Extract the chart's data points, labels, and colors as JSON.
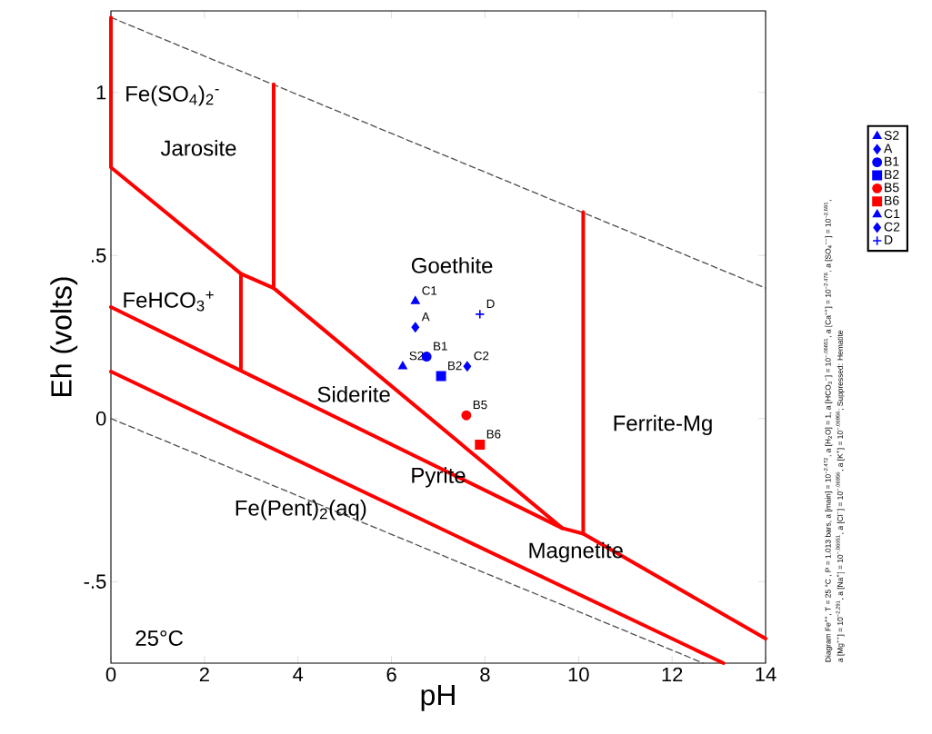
{
  "chart_data": {
    "type": "scatter",
    "xlabel": "pH",
    "ylabel": "Eh (volts)",
    "xlim": [
      0,
      14
    ],
    "ylim": [
      -0.75,
      1.25
    ],
    "xticks": [
      0,
      2,
      4,
      6,
      8,
      10,
      12,
      14
    ],
    "yticks": [
      {
        "value": -0.5,
        "label": "-.5"
      },
      0,
      {
        "value": 0.5,
        "label": ".5"
      },
      1
    ],
    "legend": "right",
    "series": [
      {
        "type": "line",
        "color": "#505050",
        "line_style": "dashed",
        "x": [
          0,
          14
        ],
        "values": [
          1.23,
          0.4
        ]
      },
      {
        "type": "line",
        "color": "#505050",
        "line_style": "dashed",
        "x": [
          0,
          12.67
        ],
        "values": [
          0,
          -0.75
        ]
      },
      {
        "type": "line",
        "color": "#ff0000",
        "x": [
          0,
          0,
          2.78,
          3.48,
          9.65,
          10.1,
          14
        ],
        "values": [
          1.23,
          0.77,
          0.444,
          0.4,
          -0.336,
          -0.353,
          -0.675
        ]
      },
      {
        "type": "line",
        "color": "#ff0000",
        "x": [
          0,
          9.65
        ],
        "values": [
          0.342,
          -0.336
        ]
      },
      {
        "type": "line",
        "color": "#ff0000",
        "x": [
          2.78,
          2.78
        ],
        "values": [
          0.444,
          0.15
        ]
      },
      {
        "type": "line",
        "color": "#ff0000",
        "x": [
          3.48,
          3.48
        ],
        "values": [
          1.025,
          0.4
        ]
      },
      {
        "type": "line",
        "color": "#ff0000",
        "x": [
          10.1,
          10.1
        ],
        "values": [
          0.633,
          -0.353
        ]
      },
      {
        "type": "line",
        "color": "#ff0000",
        "x": [
          0,
          13.1
        ],
        "values": [
          0.144,
          -0.75
        ]
      },
      {
        "name": "S2",
        "color": "#0000ff",
        "marker": "triangle",
        "x": [
          6.24
        ],
        "values": [
          0.16
        ]
      },
      {
        "name": "A",
        "color": "#0000ff",
        "marker": "diamond",
        "x": [
          6.51
        ],
        "values": [
          0.28
        ]
      },
      {
        "name": "B1",
        "color": "#0000ff",
        "marker": "circle",
        "x": [
          6.75
        ],
        "values": [
          0.19
        ]
      },
      {
        "name": "B2",
        "color": "#0000ff",
        "marker": "square",
        "x": [
          7.06
        ],
        "values": [
          0.13
        ]
      },
      {
        "name": "B5",
        "color": "#ff0000",
        "marker": "circle",
        "x": [
          7.6
        ],
        "values": [
          0.01
        ]
      },
      {
        "name": "B6",
        "color": "#ff0000",
        "marker": "square",
        "x": [
          7.89
        ],
        "values": [
          -0.08
        ]
      },
      {
        "name": "C1",
        "color": "#0000ff",
        "marker": "triangle",
        "x": [
          6.51
        ],
        "values": [
          0.36
        ]
      },
      {
        "name": "C2",
        "color": "#0000ff",
        "marker": "diamond",
        "x": [
          7.62
        ],
        "values": [
          0.16
        ]
      },
      {
        "name": "D",
        "color": "#0000ff",
        "marker": "cross",
        "x": [
          7.89
        ],
        "values": [
          0.32
        ]
      }
    ],
    "annotations": [
      "Fe(SO$_{4}$)$_{2}$$^{-}$",
      "Jarosite",
      "FeHCO$_{3}$$^{+}$",
      "Goethite",
      "Siderite",
      "Ferrite-Mg",
      "Magnetite",
      "Pyrite",
      "Fe(Pent)$_{2}$(aq)",
      "25°C",
      "Diagram Fe$^{++}$, T = 25 °C , P = 1.013 bars, a [main] = 10$^{−2.472}$, a [H$_{2}$O] = 1, a [HCO$_{3}$$^{−}$] = 10$^{−.06651}$, a [Ca$^{++}$] = 10$^{−2.476}$, a [SO$_{4}$$^{−−}$] = 10$^{−2.691}$,",
      "a [Mg$^{++}$] = 10$^{−2.291}$, a [Na$^{+}$] = 10$^{−.06651}$, a [Cl$^{−}$] = 10$^{−.06956}$, a [K$^{+}$] = 10$^{−.06956}$; Suppressed: Hematite"
    ]
  }
}
